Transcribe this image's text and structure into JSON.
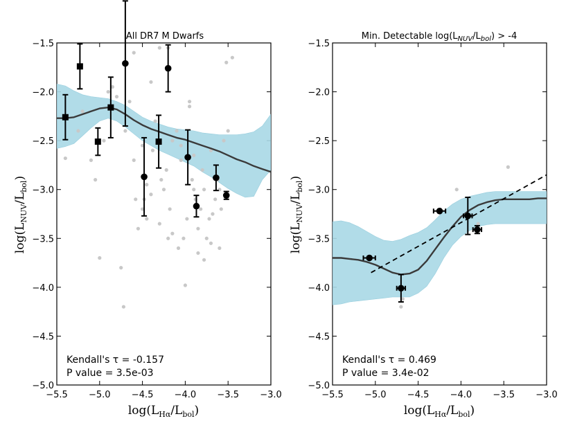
{
  "chart_data": [
    {
      "type": "scatter",
      "title": "All DR7 M Dwarfs",
      "xlabel": "log(L_Hα/L_bol)",
      "ylabel": "log(L_NUV/L_bol)",
      "xlim": [
        -5.5,
        -3.0
      ],
      "ylim": [
        -5.0,
        -1.5
      ],
      "xticks": [
        -5.5,
        -5.0,
        -4.5,
        -4.0,
        -3.5,
        -3.0
      ],
      "yticks": [
        -5.0,
        -4.5,
        -4.0,
        -3.5,
        -3.0,
        -2.5,
        -2.0,
        -1.5
      ],
      "xtick_labels": [
        "−5.5",
        "−5.0",
        "−4.5",
        "−4.0",
        "−3.5",
        "−3.0"
      ],
      "ytick_labels": [
        "−5.0",
        "−4.5",
        "−4.0",
        "−3.5",
        "−3.0",
        "−2.5",
        "−2.0",
        "−1.5"
      ],
      "background_points": [
        [
          -5.4,
          -2.68
        ],
        [
          -5.25,
          -2.4
        ],
        [
          -5.2,
          -2.2
        ],
        [
          -5.1,
          -2.7
        ],
        [
          -5.05,
          -2.9
        ],
        [
          -5.0,
          -3.7
        ],
        [
          -4.95,
          -2.5
        ],
        [
          -4.9,
          -2.0
        ],
        [
          -4.85,
          -1.95
        ],
        [
          -4.8,
          -2.05
        ],
        [
          -4.75,
          -3.8
        ],
        [
          -4.72,
          -4.2
        ],
        [
          -4.7,
          -2.4
        ],
        [
          -4.65,
          -2.1
        ],
        [
          -4.6,
          -1.6
        ],
        [
          -4.58,
          -3.1
        ],
        [
          -4.55,
          -3.4
        ],
        [
          -4.5,
          -3.2
        ],
        [
          -4.48,
          -3.1
        ],
        [
          -4.45,
          -3.3
        ],
        [
          -4.4,
          -1.9
        ],
        [
          -4.38,
          -2.6
        ],
        [
          -4.35,
          -2.3
        ],
        [
          -4.3,
          -1.55
        ],
        [
          -4.28,
          -2.9
        ],
        [
          -4.25,
          -3.0
        ],
        [
          -4.22,
          -2.8
        ],
        [
          -4.2,
          -1.55
        ],
        [
          -4.18,
          -3.2
        ],
        [
          -4.15,
          -2.5
        ],
        [
          -4.1,
          -2.4
        ],
        [
          -4.08,
          -3.6
        ],
        [
          -4.05,
          -2.7
        ],
        [
          -4.02,
          -3.5
        ],
        [
          -4.0,
          -3.98
        ],
        [
          -3.98,
          -3.3
        ],
        [
          -3.95,
          -2.1
        ],
        [
          -3.92,
          -2.9
        ],
        [
          -3.9,
          -3.0
        ],
        [
          -3.88,
          -3.1
        ],
        [
          -3.85,
          -3.4
        ],
        [
          -3.82,
          -3.2
        ],
        [
          -3.8,
          -2.8
        ],
        [
          -3.78,
          -3.0
        ],
        [
          -3.75,
          -3.5
        ],
        [
          -3.72,
          -3.3
        ],
        [
          -3.7,
          -2.6
        ],
        [
          -3.68,
          -3.25
        ],
        [
          -3.65,
          -3.1
        ],
        [
          -3.62,
          -2.9
        ],
        [
          -3.6,
          -3.6
        ],
        [
          -3.58,
          -3.2
        ],
        [
          -3.55,
          -2.5
        ],
        [
          -3.52,
          -1.7
        ],
        [
          -3.5,
          -2.4
        ],
        [
          -3.45,
          -1.65
        ],
        [
          -3.85,
          -3.65
        ],
        [
          -3.78,
          -3.72
        ],
        [
          -3.95,
          -2.15
        ],
        [
          -4.45,
          -2.95
        ],
        [
          -4.3,
          -3.35
        ],
        [
          -4.15,
          -3.45
        ],
        [
          -4.6,
          -2.7
        ],
        [
          -4.05,
          -2.55
        ],
        [
          -4.4,
          -3.05
        ],
        [
          -3.9,
          -2.65
        ],
        [
          -3.7,
          -3.55
        ],
        [
          -4.2,
          -3.5
        ],
        [
          -3.6,
          -3.0
        ],
        [
          -4.5,
          -2.55
        ]
      ],
      "binned_points": [
        {
          "x": -5.4,
          "y": -2.26,
          "yerr": 0.23,
          "marker": "square"
        },
        {
          "x": -5.23,
          "y": -1.74,
          "yerr": 0.23,
          "marker": "square"
        },
        {
          "x": -5.02,
          "y": -2.51,
          "yerr": 0.14,
          "marker": "square"
        },
        {
          "x": -4.87,
          "y": -2.16,
          "yerr": 0.31,
          "marker": "square"
        },
        {
          "x": -4.31,
          "y": -2.51,
          "yerr": 0.27,
          "marker": "square"
        },
        {
          "x": -4.7,
          "y": -1.71,
          "yerr": 0.64,
          "marker": "circle"
        },
        {
          "x": -4.2,
          "y": -1.76,
          "yerr": 0.24,
          "marker": "circle"
        },
        {
          "x": -4.48,
          "y": -2.87,
          "yerr": 0.4,
          "marker": "circle"
        },
        {
          "x": -3.97,
          "y": -2.67,
          "yerr": 0.28,
          "marker": "circle"
        },
        {
          "x": -3.87,
          "y": -3.17,
          "yerr": 0.11,
          "marker": "circle"
        },
        {
          "x": -3.64,
          "y": -2.88,
          "yerr": 0.13,
          "marker": "circle"
        },
        {
          "x": -3.52,
          "y": -3.06,
          "yerr": 0.04,
          "marker": "circle"
        }
      ],
      "fit_curve": {
        "x": [
          -5.5,
          -5.4,
          -5.3,
          -5.2,
          -5.1,
          -5.0,
          -4.9,
          -4.8,
          -4.7,
          -4.6,
          -4.5,
          -4.4,
          -4.3,
          -4.2,
          -4.1,
          -4.0,
          -3.9,
          -3.8,
          -3.7,
          -3.6,
          -3.5,
          -3.4,
          -3.3,
          -3.2,
          -3.1,
          -3.0
        ],
        "y": [
          -2.27,
          -2.27,
          -2.26,
          -2.23,
          -2.2,
          -2.17,
          -2.16,
          -2.18,
          -2.23,
          -2.29,
          -2.34,
          -2.38,
          -2.41,
          -2.44,
          -2.47,
          -2.49,
          -2.52,
          -2.55,
          -2.58,
          -2.61,
          -2.65,
          -2.69,
          -2.72,
          -2.76,
          -2.79,
          -2.82
        ]
      },
      "confidence_band": {
        "x": [
          -5.5,
          -5.4,
          -5.3,
          -5.2,
          -5.1,
          -5.0,
          -4.9,
          -4.8,
          -4.7,
          -4.6,
          -4.5,
          -4.4,
          -4.3,
          -4.2,
          -4.1,
          -4.0,
          -3.9,
          -3.8,
          -3.7,
          -3.6,
          -3.5,
          -3.4,
          -3.3,
          -3.2,
          -3.1,
          -3.0
        ],
        "upper": [
          -1.92,
          -1.94,
          -1.99,
          -2.03,
          -2.05,
          -2.06,
          -2.07,
          -2.1,
          -2.14,
          -2.2,
          -2.26,
          -2.3,
          -2.33,
          -2.36,
          -2.38,
          -2.39,
          -2.4,
          -2.42,
          -2.43,
          -2.44,
          -2.44,
          -2.44,
          -2.43,
          -2.41,
          -2.35,
          -2.23
        ],
        "lower": [
          -2.58,
          -2.56,
          -2.53,
          -2.45,
          -2.37,
          -2.3,
          -2.27,
          -2.3,
          -2.36,
          -2.43,
          -2.5,
          -2.55,
          -2.6,
          -2.64,
          -2.68,
          -2.72,
          -2.76,
          -2.82,
          -2.87,
          -2.93,
          -2.99,
          -3.04,
          -3.08,
          -3.07,
          -2.9,
          -2.8
        ]
      },
      "stats": {
        "tau_label": "Kendall's τ = -0.157",
        "p_label": "P value = 3.5e-03"
      }
    },
    {
      "type": "scatter",
      "title": "Min. Detectable log(L_NUV/L_bol) > -4",
      "xlabel": "log(L_Hα/L_bol)",
      "ylabel": "log(L_NUV/L_bol)",
      "xlim": [
        -5.5,
        -3.0
      ],
      "ylim": [
        -5.0,
        -1.5
      ],
      "xticks": [
        -5.5,
        -5.0,
        -4.5,
        -4.0,
        -3.5,
        -3.0
      ],
      "yticks": [
        -5.0,
        -4.5,
        -4.0,
        -3.5,
        -3.0,
        -2.5,
        -2.0,
        -1.5
      ],
      "xtick_labels": [
        "−5.5",
        "−5.0",
        "−4.5",
        "−4.0",
        "−3.5",
        "−3.0"
      ],
      "ytick_labels": [
        "−5.0",
        "−4.5",
        "−4.0",
        "−3.5",
        "−3.0",
        "−2.5",
        "−2.0",
        "−1.5"
      ],
      "background_points": [
        [
          -4.7,
          -4.2
        ],
        [
          -4.68,
          -4.12
        ],
        [
          -4.05,
          -3.0
        ],
        [
          -3.45,
          -2.77
        ],
        [
          -3.8,
          -3.35
        ]
      ],
      "binned_points": [
        {
          "x": -5.07,
          "y": -3.7,
          "xerr": 0.07,
          "yerr": 0.0,
          "marker": "circle"
        },
        {
          "x": -4.7,
          "y": -4.01,
          "xerr": 0.05,
          "yerr": 0.14,
          "marker": "circle"
        },
        {
          "x": -4.25,
          "y": -3.22,
          "xerr": 0.07,
          "yerr": 0.0,
          "marker": "circle"
        },
        {
          "x": -3.92,
          "y": -3.27,
          "xerr": 0.05,
          "yerr": 0.19,
          "marker": "circle"
        },
        {
          "x": -3.81,
          "y": -3.41,
          "xerr": 0.05,
          "yerr": 0.04,
          "marker": "circle"
        }
      ],
      "fit_curve": {
        "x": [
          -5.5,
          -5.4,
          -5.3,
          -5.2,
          -5.1,
          -5.0,
          -4.9,
          -4.8,
          -4.7,
          -4.6,
          -4.5,
          -4.4,
          -4.3,
          -4.2,
          -4.1,
          -4.0,
          -3.9,
          -3.8,
          -3.7,
          -3.6,
          -3.5,
          -3.4,
          -3.3,
          -3.2,
          -3.1,
          -3.0
        ],
        "y": [
          -3.7,
          -3.7,
          -3.71,
          -3.72,
          -3.74,
          -3.77,
          -3.81,
          -3.85,
          -3.87,
          -3.86,
          -3.82,
          -3.73,
          -3.61,
          -3.49,
          -3.38,
          -3.28,
          -3.21,
          -3.16,
          -3.13,
          -3.11,
          -3.1,
          -3.1,
          -3.1,
          -3.1,
          -3.09,
          -3.09
        ]
      },
      "confidence_band": {
        "x": [
          -5.5,
          -5.4,
          -5.3,
          -5.2,
          -5.1,
          -5.0,
          -4.9,
          -4.8,
          -4.7,
          -4.6,
          -4.5,
          -4.4,
          -4.3,
          -4.2,
          -4.1,
          -4.0,
          -3.9,
          -3.8,
          -3.7,
          -3.6,
          -3.5,
          -3.4,
          -3.3,
          -3.2,
          -3.1,
          -3.0
        ],
        "upper": [
          -3.33,
          -3.32,
          -3.34,
          -3.38,
          -3.43,
          -3.48,
          -3.52,
          -3.53,
          -3.51,
          -3.47,
          -3.44,
          -3.39,
          -3.31,
          -3.22,
          -3.15,
          -3.1,
          -3.07,
          -3.05,
          -3.03,
          -3.02,
          -3.02,
          -3.02,
          -3.02,
          -3.02,
          -3.02,
          -3.02
        ],
        "lower": [
          -4.18,
          -4.17,
          -4.15,
          -4.14,
          -4.13,
          -4.12,
          -4.11,
          -4.1,
          -4.1,
          -4.1,
          -4.06,
          -3.99,
          -3.86,
          -3.7,
          -3.57,
          -3.48,
          -3.42,
          -3.38,
          -3.36,
          -3.35,
          -3.35,
          -3.35,
          -3.35,
          -3.35,
          -3.35,
          -3.35
        ]
      },
      "dashed_line": {
        "x": [
          -5.05,
          -3.0
        ],
        "y": [
          -3.85,
          -2.85
        ]
      },
      "stats": {
        "tau_label": "Kendall's τ = 0.469",
        "p_label": "P value = 3.4e-02"
      }
    }
  ],
  "colors": {
    "band": "#a9d9e6",
    "band_edge": "#8cc8da",
    "curve": "#3a3a3a",
    "points": "#000000",
    "background_points": "#c8c8c8"
  },
  "labels": {
    "left_title": "All DR7 M Dwarfs",
    "right_title_prefix": "Min. Detectable log(L",
    "right_title_sub1": "NUV",
    "right_title_mid": "/L",
    "right_title_sub2": "bol",
    "right_title_suffix": ") > -4",
    "x_main": "log(L",
    "x_sub1": "Hα",
    "x_mid": "/L",
    "x_sub2": "bol",
    "x_end": ")",
    "y_main": "log(L",
    "y_sub1": "NUV",
    "y_mid": "/L",
    "y_sub2": "bol",
    "y_end": ")"
  }
}
